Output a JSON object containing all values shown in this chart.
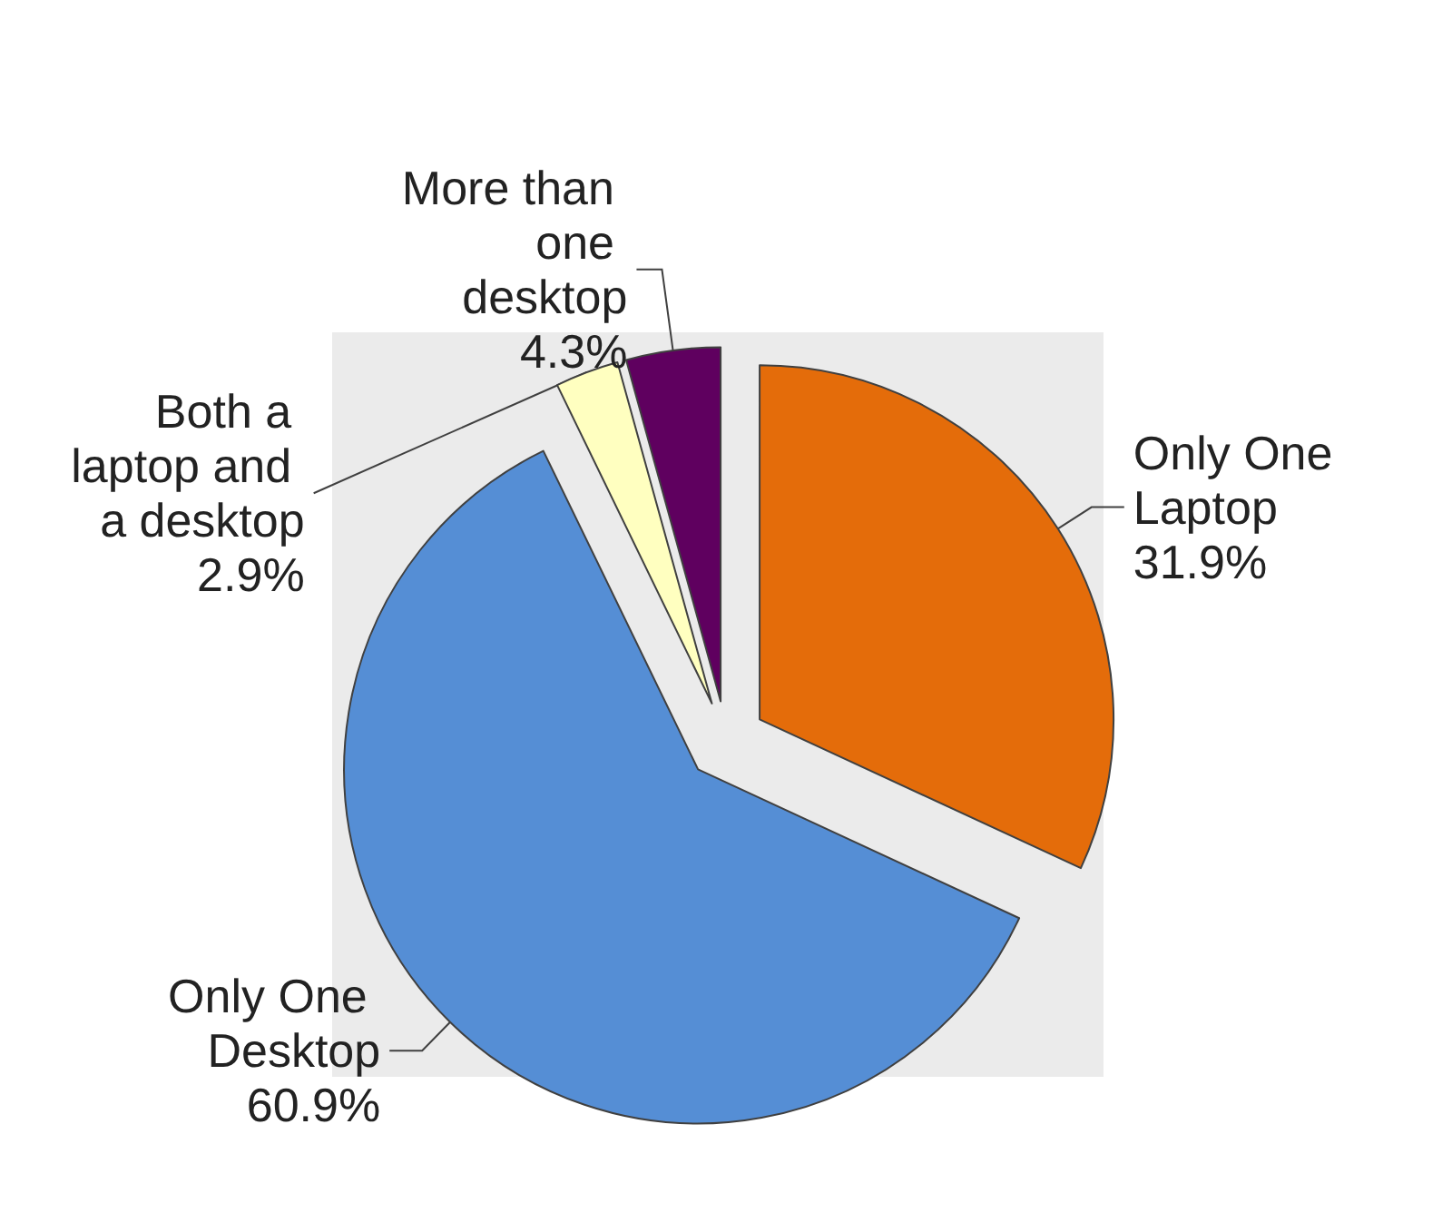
{
  "chart_data": {
    "type": "pie",
    "categories": [
      "Only One Laptop",
      "Only One Desktop",
      "Both a laptop and a desktop",
      "More than one desktop"
    ],
    "values": [
      31.9,
      60.9,
      2.9,
      4.3
    ],
    "colors": [
      "#e46c0a",
      "#558ed5",
      "#ffffc0",
      "#5f005f"
    ],
    "value_labels": [
      "31.9%",
      "60.9%",
      "2.9%",
      "4.3%"
    ],
    "legend": false
  }
}
